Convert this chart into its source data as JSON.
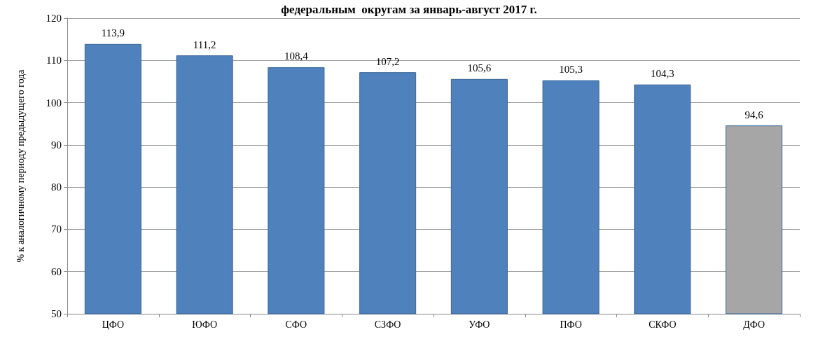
{
  "chart_data": {
    "type": "bar",
    "title": "федеральным  округам за январь-август 2017 г.",
    "ylabel": "% к аналогичному периоду предыдущего года",
    "categories": [
      "ЦФО",
      "ЮФО",
      "СФО",
      "СЗФО",
      "УФО",
      "ПФО",
      "СКФО",
      "ДФО"
    ],
    "values": [
      113.9,
      111.2,
      108.4,
      107.2,
      105.6,
      105.3,
      104.3,
      94.6
    ],
    "colors": [
      "#4f81bd",
      "#4f81bd",
      "#4f81bd",
      "#4f81bd",
      "#4f81bd",
      "#4f81bd",
      "#4f81bd",
      "#a6a6a6"
    ],
    "value_labels": [
      "113,9",
      "111,2",
      "108,4",
      "107,2",
      "105,6",
      "105,3",
      "104,3",
      "94,6"
    ],
    "ylim": [
      50,
      120
    ],
    "yticks": [
      50,
      60,
      70,
      80,
      90,
      100,
      110,
      120
    ],
    "grid": "y"
  }
}
